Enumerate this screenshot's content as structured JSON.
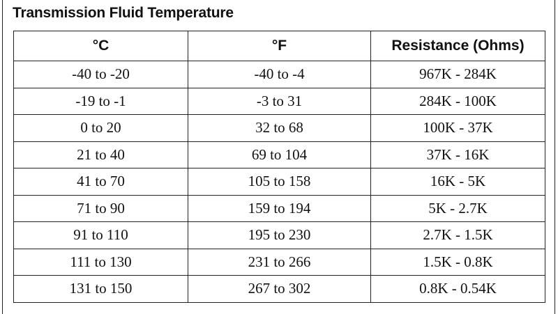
{
  "title": "Transmission Fluid Temperature",
  "table": {
    "headers": [
      "°C",
      "°F",
      "Resistance (Ohms)"
    ],
    "rows": [
      [
        "-40 to -20",
        "-40 to -4",
        "967K - 284K"
      ],
      [
        "-19 to -1",
        "-3 to 31",
        "284K - 100K"
      ],
      [
        "0 to 20",
        "32 to 68",
        "100K - 37K"
      ],
      [
        "21 to 40",
        "69 to 104",
        "37K - 16K"
      ],
      [
        "41 to 70",
        "105 to 158",
        "16K - 5K"
      ],
      [
        "71 to 90",
        "159 to 194",
        "5K - 2.7K"
      ],
      [
        "91 to 110",
        "195 to 230",
        "2.7K - 1.5K"
      ],
      [
        "111 to 130",
        "231 to 266",
        "1.5K - 0.8K"
      ],
      [
        "131 to 150",
        "267 to 302",
        "0.8K - 0.54K"
      ]
    ]
  }
}
